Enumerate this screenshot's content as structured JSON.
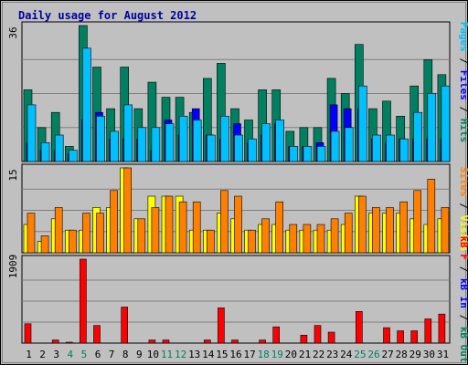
{
  "title": "Daily usage for August 2012",
  "colors": {
    "frame_bg": "#c0c0c0",
    "panel_bg": "#c0c0c0",
    "grid": "#808080",
    "title": "#0000a0",
    "hits": "#008060",
    "files": "#0000ff",
    "pages": "#00c0ff",
    "visits": "#ffff00",
    "sites": "#ff8000",
    "kbf": "#ff0000",
    "kbin": "#0000ff",
    "kbout": "#008060",
    "weekend_label": "#008060"
  },
  "legends": {
    "top": {
      "hits": "Hits",
      "files": "Files",
      "pages": "Pages",
      "sep": "/"
    },
    "mid": {
      "visits": "Visits",
      "sites": "Sites",
      "sep": "/"
    },
    "bot": {
      "kbout": "kB Out",
      "kbin": "kB In",
      "kbf": "kB F",
      "sep": "/"
    }
  },
  "chart_data": {
    "type": "bar",
    "title": "Daily usage for August 2012",
    "x_categories": [
      "1",
      "2",
      "3",
      "4",
      "5",
      "6",
      "7",
      "8",
      "9",
      "10",
      "11",
      "12",
      "13",
      "14",
      "15",
      "16",
      "17",
      "18",
      "19",
      "20",
      "21",
      "22",
      "23",
      "24",
      "25",
      "26",
      "27",
      "28",
      "29",
      "30",
      "31"
    ],
    "weekend_days": [
      "4",
      "5",
      "11",
      "12",
      "18",
      "19",
      "25",
      "26"
    ],
    "panels": [
      {
        "name": "hits-files-pages",
        "ymax": 36,
        "ymax_label": "36",
        "series": [
          {
            "name": "Hits",
            "values": [
              19,
              9,
              13,
              4,
              36,
              25,
              14,
              25,
              14,
              21,
              17,
              17,
              13,
              22,
              26,
              14,
              11,
              19,
              19,
              8,
              9,
              9,
              22,
              18,
              31,
              14,
              16,
              12,
              20,
              27,
              23
            ]
          },
          {
            "name": "Files",
            "values": [
              5,
              3,
              3,
              2,
              11,
              13,
              6,
              6,
              6,
              3,
              11,
              7,
              14,
              7,
              6,
              10,
              5,
              7,
              10,
              4,
              4,
              5,
              15,
              14,
              14,
              6,
              5,
              6,
              6,
              6,
              6
            ]
          },
          {
            "name": "Pages",
            "values": [
              15,
              5,
              7,
              3,
              30,
              12,
              8,
              15,
              9,
              9,
              10,
              12,
              11,
              7,
              12,
              7,
              6,
              10,
              11,
              4,
              4,
              4,
              8,
              9,
              20,
              7,
              7,
              6,
              13,
              18,
              20
            ]
          }
        ]
      },
      {
        "name": "visits-sites",
        "ymax": 15,
        "ymax_label": "15",
        "series": [
          {
            "name": "Visits",
            "values": [
              5,
              2,
              6,
              4,
              4,
              8,
              8,
              15,
              6,
              10,
              10,
              10,
              4,
              4,
              7,
              6,
              4,
              5,
              5,
              4,
              4,
              4,
              4,
              5,
              10,
              7,
              7,
              7,
              6,
              5,
              6
            ]
          },
          {
            "name": "Sites",
            "values": [
              7,
              3,
              8,
              4,
              7,
              7,
              11,
              15,
              6,
              8,
              10,
              9,
              9,
              4,
              11,
              10,
              4,
              6,
              9,
              5,
              5,
              5,
              6,
              7,
              10,
              8,
              8,
              9,
              11,
              13,
              8
            ]
          }
        ]
      },
      {
        "name": "kbf-kbin-kbout",
        "ymax": 1909,
        "ymax_label": "1909",
        "series": [
          {
            "name": "kB F",
            "values": [
              440,
              0,
              70,
              20,
              1909,
              400,
              0,
              820,
              0,
              70,
              70,
              0,
              0,
              70,
              800,
              70,
              0,
              70,
              370,
              0,
              180,
              400,
              250,
              0,
              720,
              0,
              350,
              280,
              280,
              550,
              660
            ]
          },
          {
            "name": "kB In",
            "values": [
              0,
              0,
              0,
              0,
              0,
              0,
              0,
              0,
              0,
              0,
              0,
              0,
              0,
              0,
              0,
              0,
              0,
              0,
              0,
              0,
              0,
              0,
              0,
              0,
              0,
              0,
              0,
              0,
              0,
              0,
              0
            ]
          },
          {
            "name": "kB Out",
            "values": [
              0,
              0,
              0,
              0,
              0,
              0,
              0,
              0,
              0,
              0,
              0,
              0,
              0,
              0,
              0,
              0,
              0,
              0,
              0,
              0,
              0,
              0,
              0,
              0,
              0,
              0,
              0,
              0,
              0,
              0,
              0
            ]
          }
        ]
      }
    ]
  }
}
